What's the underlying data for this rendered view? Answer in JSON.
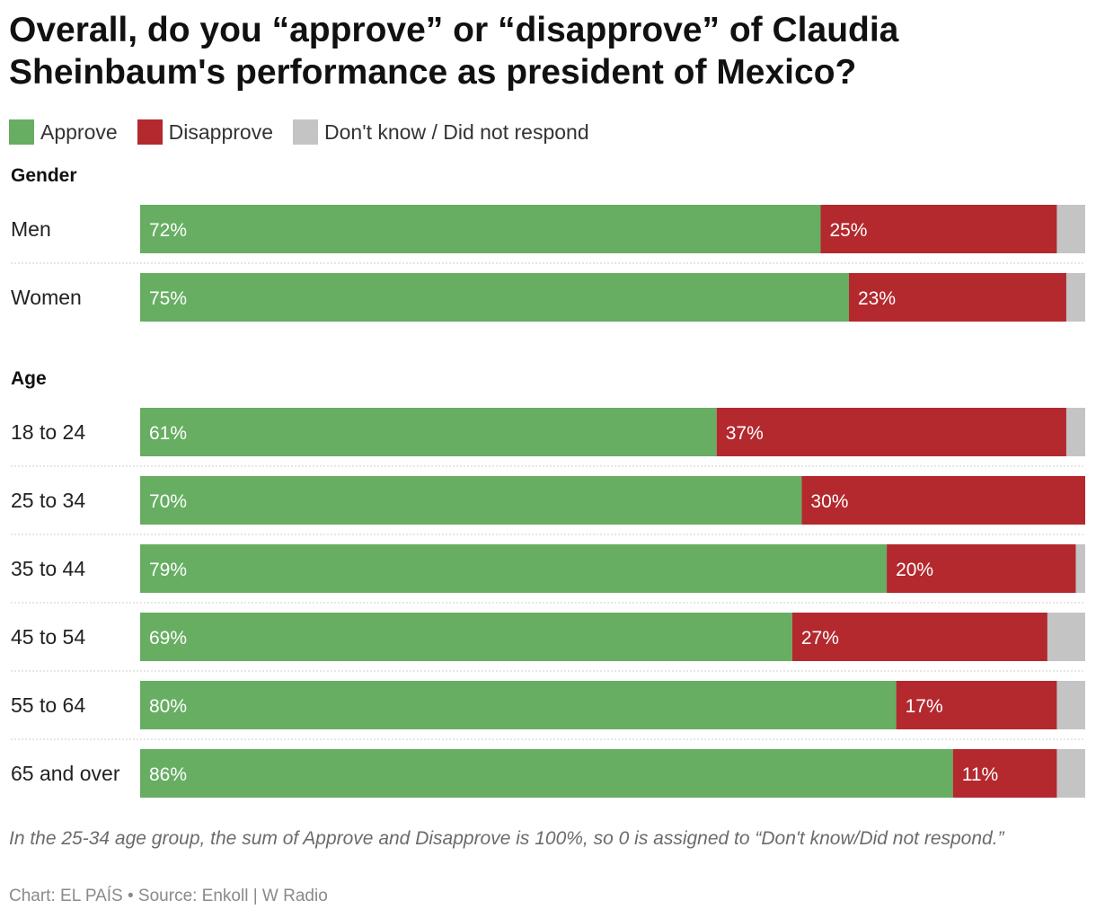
{
  "title": "Overall, do you “approve” or “disapprove” of Claudia Sheinbaum's performance as president of Mexico?",
  "legend": [
    {
      "label": "Approve",
      "color": "#67ae62"
    },
    {
      "label": "Disapprove",
      "color": "#b3292e"
    },
    {
      "label": "Don't know / Did not respond",
      "color": "#c4c4c4"
    }
  ],
  "chart_data": {
    "type": "bar",
    "orientation": "horizontal",
    "stacked": true,
    "value_scale_max": 100,
    "groups": [
      {
        "name": "Gender",
        "categories": [
          "Men",
          "Women"
        ]
      },
      {
        "name": "Age",
        "categories": [
          "18 to 24",
          "25 to 34",
          "35 to 44",
          "45 to 54",
          "55 to 64",
          "65 and over"
        ]
      }
    ],
    "categories": [
      "Men",
      "Women",
      "18 to 24",
      "25 to 34",
      "35 to 44",
      "45 to 54",
      "55 to 64",
      "65 and over"
    ],
    "series": [
      {
        "name": "Approve",
        "color": "#67ae62",
        "values": [
          72,
          75,
          61,
          70,
          79,
          69,
          80,
          86
        ],
        "labels": [
          "72%",
          "75%",
          "61%",
          "70%",
          "79%",
          "69%",
          "80%",
          "86%"
        ]
      },
      {
        "name": "Disapprove",
        "color": "#b3292e",
        "values": [
          25,
          23,
          37,
          30,
          20,
          27,
          17,
          11
        ],
        "labels": [
          "25%",
          "23%",
          "37%",
          "30%",
          "20%",
          "27%",
          "17%",
          "11%"
        ]
      },
      {
        "name": "Don't know / Did not respond",
        "color": "#c4c4c4",
        "values": [
          3,
          2,
          2,
          0,
          1,
          4,
          3,
          3
        ],
        "labels": [
          "",
          "",
          "",
          "",
          "",
          "",
          "",
          ""
        ]
      }
    ]
  },
  "note": "In the 25-34 age group, the sum of Approve and Disapprove is 100%, so 0 is assigned to “Don't know/Did not respond.”",
  "footer": "Chart: EL PAÍS • Source: Enkoll | W Radio"
}
